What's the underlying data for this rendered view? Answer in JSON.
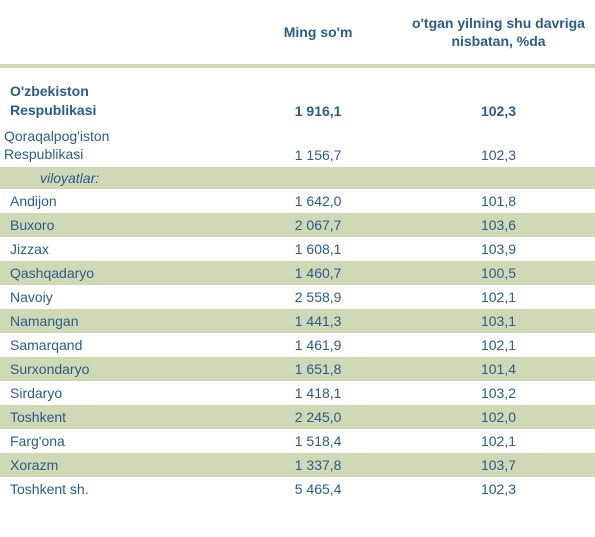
{
  "headers": {
    "col1": "",
    "col2": "Ming so'm",
    "col3": "o'tgan yilning shu davriga nisbatan, %da"
  },
  "totalRow": {
    "name_line1": "O'zbekiston",
    "name_line2": " Respublikasi",
    "val1": "1 916,1",
    "val2": "102,3"
  },
  "subRow": {
    "name_line1": "Qoraqalpog'iston",
    "name_line2": " Respublikasi",
    "val1": "1 156,7",
    "val2": "102,3"
  },
  "sectionLabel": "     viloyatlar:",
  "rows": [
    {
      "name": "Andijon",
      "val1": "1 642,0",
      "val2": "101,8",
      "alt": false
    },
    {
      "name": "Buxoro",
      "val1": "2 067,7",
      "val2": "103,6",
      "alt": true
    },
    {
      "name": "Jizzax",
      "val1": "1 608,1",
      "val2": "103,9",
      "alt": false
    },
    {
      "name": "Qashqadaryo",
      "val1": "1 460,7",
      "val2": "100,5",
      "alt": true
    },
    {
      "name": "Navoiy",
      "val1": "2 558,9",
      "val2": "102,1",
      "alt": false
    },
    {
      "name": "Namangan",
      "val1": "1 441,3",
      "val2": "103,1",
      "alt": true
    },
    {
      "name": "Samarqand",
      "val1": "1 461,9",
      "val2": "102,1",
      "alt": false
    },
    {
      "name": "Surxondaryo",
      "val1": "1 651,8",
      "val2": "101,4",
      "alt": true
    },
    {
      "name": "Sirdaryo",
      "val1": "1 418,1",
      "val2": "103,2",
      "alt": false
    },
    {
      "name": "Toshkent",
      "val1": "2 245,0",
      "val2": "102,0",
      "alt": true
    },
    {
      "name": "Farg'ona",
      "val1": "1 518,4",
      "val2": "102,1",
      "alt": false
    },
    {
      "name": "Xorazm",
      "val1": "1 337,8",
      "val2": "103,7",
      "alt": true
    },
    {
      "name": "Toshkent sh.",
      "val1": "5 465,4",
      "val2": "102,3",
      "alt": false
    }
  ],
  "colors": {
    "text": "#2b5c8a",
    "band": "#cfd9b6",
    "background": "#ffffff"
  }
}
